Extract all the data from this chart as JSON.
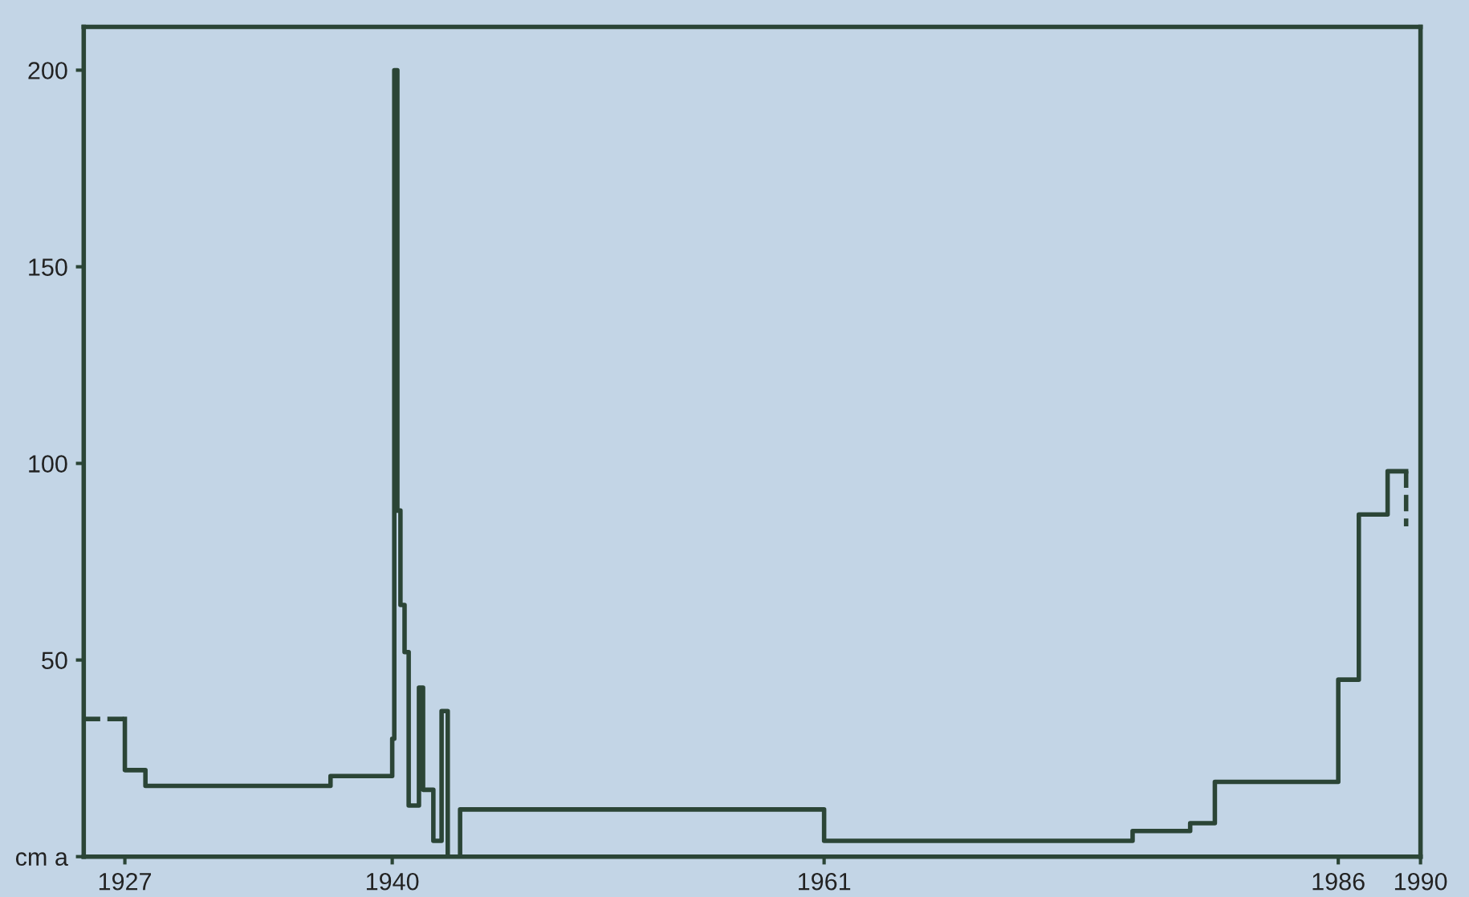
{
  "chart_data": {
    "type": "step",
    "xlim": [
      1925,
      1990
    ],
    "ylim": [
      0,
      211
    ],
    "xticks": [
      1927,
      1940,
      1961,
      1986,
      1990
    ],
    "yticks": [
      {
        "value": 0,
        "label": "cm a"
      },
      50,
      100,
      150,
      200
    ],
    "grid": false,
    "legend": false,
    "marker": "none",
    "series": [
      {
        "line_style": "dashed",
        "color": "#2b4536",
        "x": [
          1925,
          1927
        ],
        "values": [
          35,
          35
        ]
      },
      {
        "line_style": "solid",
        "color": "#2b4536",
        "x": [
          1927,
          1927,
          1928,
          1937,
          1940,
          1940.1,
          1940.25,
          1940.4,
          1940.6,
          1940.8,
          1941.3,
          1941.5,
          1942,
          1942.4,
          1942.7,
          1943.3,
          1961,
          1976,
          1978.8,
          1980,
          1986,
          1987,
          1988.4,
          1989.3
        ],
        "values": [
          35,
          22,
          18,
          20.5,
          30,
          200,
          88,
          64,
          52,
          13,
          43,
          17,
          4,
          37,
          0,
          12,
          4,
          6.5,
          8.5,
          19,
          45,
          87,
          98,
          98
        ]
      },
      {
        "type": "line",
        "line_style": "dashed",
        "color": "#2b4536",
        "x": [
          1989.3,
          1989.3
        ],
        "values": [
          98,
          84
        ]
      }
    ]
  }
}
